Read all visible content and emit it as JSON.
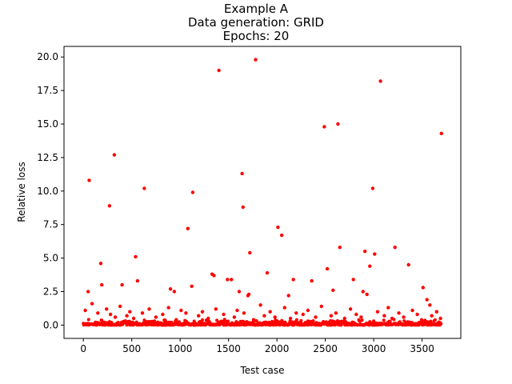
{
  "chart_data": {
    "type": "scatter",
    "title_lines": [
      "Example A",
      "Data generation: GRID",
      "Epochs: 20"
    ],
    "xlabel": "Test case",
    "ylabel": "Relative loss",
    "xlim": [
      -200,
      3900
    ],
    "ylim": [
      -0.99,
      20.79
    ],
    "xticks": [
      0,
      500,
      1000,
      1500,
      2000,
      2500,
      3000,
      3500
    ],
    "xtick_labels": [
      "0",
      "500",
      "1000",
      "1500",
      "2000",
      "2500",
      "3000",
      "3500"
    ],
    "yticks": [
      0,
      2.5,
      5,
      7.5,
      10,
      12.5,
      15,
      17.5,
      20
    ],
    "ytick_labels": [
      "0.0",
      "2.5",
      "5.0",
      "7.5",
      "10.0",
      "12.5",
      "15.0",
      "17.5",
      "20.0"
    ],
    "grid": false,
    "marker_color": "#ff0000",
    "series": [
      {
        "x": [
          60,
          320,
          1400,
          1780,
          3070,
          2490,
          2630,
          3700,
          1640,
          630,
          1130,
          1080,
          270,
          2990,
          1650,
          2010,
          2050,
          540,
          1720,
          2650,
          2910,
          3010,
          3220,
          3360,
          180,
          1330,
          1350,
          1900,
          2520,
          2170,
          1490,
          1530,
          2580,
          3510,
          2790,
          2890,
          2930,
          2360,
          2960,
          50,
          190,
          400,
          560,
          900,
          940,
          1120,
          1610,
          1700,
          1710,
          2120,
          3550,
          3580,
          20,
          90,
          150,
          240,
          280,
          330,
          380,
          450,
          480,
          520,
          610,
          680,
          750,
          820,
          880,
          960,
          1010,
          1060,
          1190,
          1230,
          1290,
          1370,
          1450,
          1560,
          1590,
          1660,
          1760,
          1830,
          1870,
          1930,
          1980,
          2080,
          2140,
          2200,
          2270,
          2320,
          2400,
          2460,
          2560,
          2610,
          2700,
          2760,
          2820,
          2870,
          3040,
          3110,
          3150,
          3190,
          3260,
          3310,
          3400,
          3450,
          3600,
          3650,
          3690
        ],
        "y": [
          10.8,
          12.7,
          19.0,
          19.8,
          18.2,
          14.8,
          15.0,
          14.3,
          11.3,
          10.2,
          9.9,
          7.2,
          8.9,
          10.2,
          8.8,
          7.3,
          6.7,
          5.1,
          5.4,
          5.8,
          5.5,
          5.3,
          5.8,
          4.5,
          4.6,
          3.8,
          3.7,
          3.9,
          4.2,
          3.4,
          3.4,
          3.4,
          2.6,
          2.8,
          3.4,
          2.5,
          2.3,
          3.3,
          4.4,
          2.5,
          3.0,
          3.0,
          3.3,
          2.7,
          2.5,
          2.9,
          2.5,
          2.2,
          2.3,
          2.2,
          1.9,
          1.5,
          1.1,
          1.6,
          0.9,
          1.2,
          0.8,
          0.6,
          1.4,
          0.7,
          1.0,
          0.5,
          0.9,
          1.2,
          0.6,
          0.8,
          1.3,
          0.4,
          1.1,
          0.9,
          0.7,
          1.0,
          0.5,
          1.2,
          0.8,
          0.6,
          1.1,
          0.9,
          0.4,
          1.5,
          0.7,
          1.0,
          0.6,
          1.3,
          0.5,
          0.9,
          0.8,
          1.1,
          0.6,
          1.4,
          0.7,
          0.9,
          0.5,
          1.2,
          0.8,
          0.6,
          1.0,
          0.7,
          1.3,
          0.5,
          0.9,
          0.6,
          1.1,
          0.8,
          0.7,
          1.0,
          0.5
        ]
      }
    ]
  }
}
